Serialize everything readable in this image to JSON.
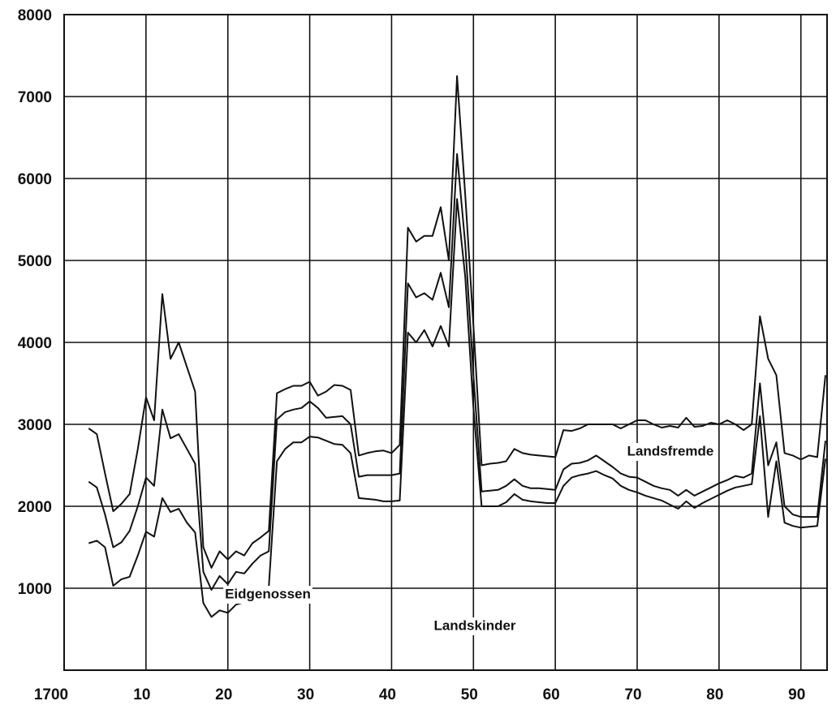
{
  "chart_data": {
    "type": "stacked_line",
    "x": [
      1703,
      1704,
      1705,
      1706,
      1707,
      1708,
      1709,
      1710,
      1711,
      1712,
      1713,
      1714,
      1715,
      1716,
      1717,
      1718,
      1719,
      1720,
      1721,
      1722,
      1723,
      1724,
      1725,
      1726,
      1727,
      1728,
      1729,
      1730,
      1731,
      1732,
      1733,
      1734,
      1735,
      1736,
      1737,
      1738,
      1739,
      1740,
      1741,
      1742,
      1743,
      1744,
      1745,
      1746,
      1747,
      1748,
      1749,
      1750,
      1751,
      1752,
      1753,
      1754,
      1755,
      1756,
      1757,
      1758,
      1759,
      1760,
      1761,
      1762,
      1763,
      1764,
      1765,
      1766,
      1767,
      1768,
      1769,
      1770,
      1771,
      1772,
      1773,
      1774,
      1775,
      1776,
      1777,
      1778,
      1779,
      1780,
      1781,
      1782,
      1783,
      1784,
      1785,
      1786,
      1787,
      1788,
      1789,
      1790,
      1791,
      1792,
      1793
    ],
    "series": [
      {
        "name": "Landskinder",
        "color": "#111111",
        "values": [
          1550,
          1580,
          1500,
          1030,
          1110,
          1140,
          1400,
          1690,
          1630,
          2100,
          1930,
          1970,
          1800,
          1680,
          820,
          650,
          730,
          700,
          800,
          830,
          900,
          970,
          1020,
          2550,
          2700,
          2780,
          2780,
          2850,
          2840,
          2800,
          2760,
          2750,
          2650,
          2100,
          2090,
          2080,
          2060,
          2060,
          2070,
          4120,
          4000,
          4150,
          3950,
          4200,
          3950,
          5750,
          4800,
          3200,
          2000,
          2000,
          2000,
          2050,
          2150,
          2080,
          2060,
          2050,
          2040,
          2040,
          2250,
          2350,
          2380,
          2400,
          2430,
          2380,
          2340,
          2250,
          2200,
          2170,
          2130,
          2100,
          2070,
          2020,
          1970,
          2060,
          1980,
          2040,
          2090,
          2140,
          2190,
          2230,
          2250,
          2270,
          3100,
          1870,
          2550,
          1800,
          1760,
          1740,
          1750,
          1760,
          2580
        ]
      },
      {
        "name": "Eidgenossen",
        "color": "#111111",
        "values": [
          750,
          650,
          400,
          470,
          450,
          560,
          600,
          660,
          620,
          1080,
          900,
          910,
          900,
          840,
          380,
          330,
          420,
          350,
          400,
          350,
          400,
          430,
          430,
          510,
          450,
          400,
          420,
          430,
          360,
          280,
          330,
          350,
          350,
          260,
          290,
          300,
          320,
          320,
          330,
          600,
          550,
          450,
          570,
          650,
          480,
          550,
          400,
          400,
          180,
          190,
          200,
          200,
          180,
          170,
          160,
          170,
          170,
          160,
          200,
          170,
          150,
          160,
          190,
          170,
          140,
          150,
          160,
          180,
          170,
          150,
          150,
          180,
          160,
          140,
          150,
          140,
          140,
          140,
          130,
          140,
          100,
          130,
          400,
          630,
          230,
          200,
          140,
          130,
          120,
          110,
          220
        ]
      },
      {
        "name": "Landsfremde",
        "color": "#111111",
        "values": [
          650,
          650,
          500,
          440,
          470,
          450,
          700,
          980,
          800,
          1410,
          970,
          1120,
          1000,
          880,
          300,
          270,
          300,
          300,
          250,
          220,
          250,
          220,
          250,
          320,
          280,
          290,
          270,
          240,
          150,
          320,
          390,
          370,
          420,
          260,
          270,
          290,
          300,
          270,
          350,
          680,
          680,
          700,
          780,
          800,
          570,
          950,
          600,
          600,
          320,
          330,
          330,
          300,
          370,
          400,
          410,
          400,
          400,
          400,
          480,
          400,
          420,
          440,
          380,
          450,
          520,
          550,
          640,
          700,
          750,
          750,
          740,
          780,
          830,
          880,
          840,
          800,
          790,
          720,
          730,
          630,
          580,
          600,
          820,
          1300,
          820,
          650,
          720,
          700,
          750,
          730,
          800
        ]
      }
    ],
    "xlim": [
      1700,
      1793
    ],
    "xticks": [
      1700,
      {
        "value": 1710,
        "label": "10"
      },
      {
        "value": 1720,
        "label": "20"
      },
      {
        "value": 1730,
        "label": "30"
      },
      {
        "value": 1740,
        "label": "40"
      },
      {
        "value": 1750,
        "label": "50"
      },
      {
        "value": 1760,
        "label": "60"
      },
      {
        "value": 1770,
        "label": "70"
      },
      {
        "value": 1780,
        "label": "80"
      },
      {
        "value": 1790,
        "label": "90"
      }
    ],
    "ylim": [
      0,
      8000
    ],
    "yticks": [
      1000,
      2000,
      3000,
      4000,
      5000,
      6000,
      7000,
      8000
    ],
    "grid": true
  }
}
